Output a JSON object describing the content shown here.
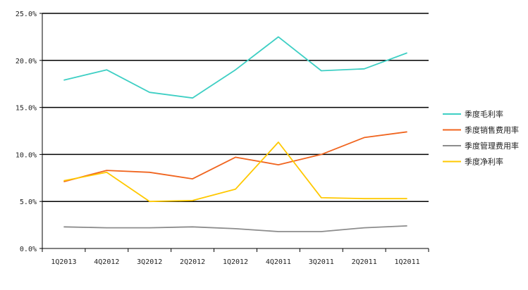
{
  "chart_data": {
    "type": "line",
    "title": "",
    "xlabel": "",
    "ylabel": "",
    "ylim": [
      0,
      25
    ],
    "y_ticks": [
      "0.0%",
      "5.0%",
      "10.0%",
      "15.0%",
      "20.0%",
      "25.0%"
    ],
    "y_tick_values": [
      0,
      5,
      10,
      15,
      20,
      25
    ],
    "grid": "horizontal",
    "legend_position": "right",
    "categories": [
      "1Q2013",
      "4Q2012",
      "3Q2012",
      "2Q2012",
      "1Q2012",
      "4Q2011",
      "3Q2011",
      "2Q2011",
      "1Q2011"
    ],
    "series": [
      {
        "name": "季度毛利率",
        "color": "#3ecfc4",
        "values": [
          17.9,
          19.0,
          16.6,
          16.0,
          19.0,
          22.5,
          18.9,
          19.1,
          20.8
        ]
      },
      {
        "name": "季度销售费用率",
        "color": "#f0641e",
        "values": [
          7.1,
          8.3,
          8.1,
          7.4,
          9.7,
          8.9,
          10.0,
          11.8,
          12.4
        ]
      },
      {
        "name": "季度管理费用率",
        "color": "#8c8c8c",
        "values": [
          2.3,
          2.2,
          2.2,
          2.3,
          2.1,
          1.8,
          1.8,
          2.2,
          2.4
        ]
      },
      {
        "name": "季度净利率",
        "color": "#ffc800",
        "values": [
          7.2,
          8.1,
          5.0,
          5.1,
          6.3,
          11.3,
          5.4,
          5.3,
          5.3
        ]
      }
    ]
  }
}
